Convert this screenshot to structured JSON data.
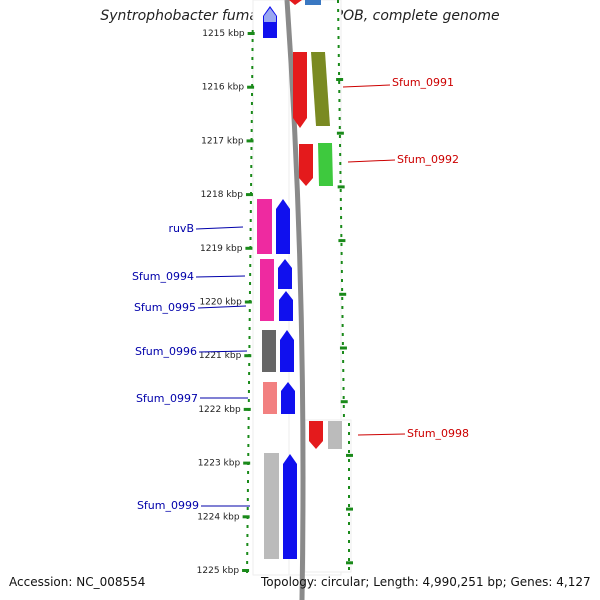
{
  "title": "Syntrophobacter fumaroxidans MPOB, complete genome",
  "footer": {
    "accession": "Accession: NC_008554",
    "topology": "Topology: circular; Length: 4,990,251 bp; Genes: 4,127"
  },
  "axis": {
    "unit": "kbp",
    "range": [
      1215,
      1225
    ],
    "ticks": [
      "1215 kbp",
      "1216 kbp",
      "1217 kbp",
      "1218 kbp",
      "1219 kbp",
      "1220 kbp",
      "1221 kbp",
      "1222 kbp",
      "1223 kbp",
      "1224 kbp",
      "1225 kbp"
    ]
  },
  "colors": {
    "red": "#e41a1c",
    "olive": "#7a8a22",
    "green": "#3ec93e",
    "pink": "#ee2aa0",
    "blue": "#1010ee",
    "darkgray": "#666666",
    "salmon": "#f28080",
    "lightgray": "#bbbbbb",
    "ruler": "#1a8a1a",
    "label_red": "#cc0000",
    "label_blue": "#0000aa"
  },
  "right_genes": [
    {
      "label": "Sfum_0991",
      "start": 1215.85,
      "end": 1216.2,
      "strand": "-"
    },
    {
      "label": "Sfum_0992",
      "start": 1217.05,
      "end": 1217.35,
      "strand": "-"
    },
    {
      "label": "Sfum_0998",
      "start": 1221.95,
      "end": 1222.3,
      "strand": "-"
    }
  ],
  "left_genes": [
    {
      "label": "ruvB",
      "start": 1218.1,
      "end": 1218.5,
      "strand": "+"
    },
    {
      "label": "Sfum_0994",
      "start": 1219.2,
      "end": 1219.5,
      "strand": "+"
    },
    {
      "label": "Sfum_0995",
      "start": 1219.8,
      "end": 1220.0,
      "strand": "+"
    },
    {
      "label": "Sfum_0996",
      "start": 1220.55,
      "end": 1220.9,
      "strand": "+"
    },
    {
      "label": "Sfum_0997",
      "start": 1221.5,
      "end": 1221.75,
      "strand": "+"
    },
    {
      "label": "Sfum_0999",
      "start": 1223.7,
      "end": 1224.3,
      "strand": "+"
    }
  ]
}
